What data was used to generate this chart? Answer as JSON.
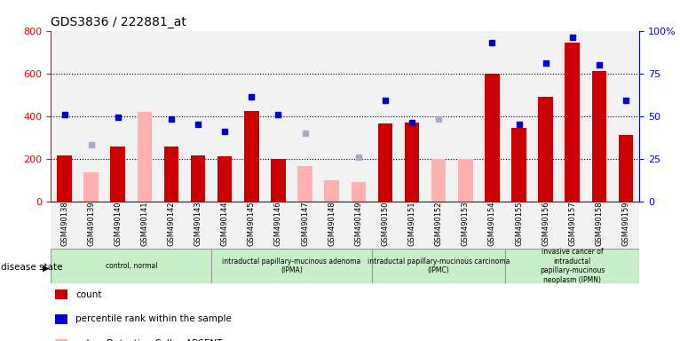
{
  "title": "GDS3836 / 222881_at",
  "samples": [
    "GSM490138",
    "GSM490139",
    "GSM490140",
    "GSM490141",
    "GSM490142",
    "GSM490143",
    "GSM490144",
    "GSM490145",
    "GSM490146",
    "GSM490147",
    "GSM490148",
    "GSM490149",
    "GSM490150",
    "GSM490151",
    "GSM490152",
    "GSM490153",
    "GSM490154",
    "GSM490155",
    "GSM490156",
    "GSM490157",
    "GSM490158",
    "GSM490159"
  ],
  "count": [
    215,
    null,
    258,
    null,
    256,
    215,
    210,
    425,
    200,
    null,
    null,
    null,
    365,
    370,
    null,
    null,
    600,
    345,
    490,
    745,
    610,
    310
  ],
  "count_absent": [
    null,
    135,
    null,
    420,
    null,
    null,
    null,
    null,
    null,
    165,
    100,
    90,
    null,
    null,
    200,
    200,
    null,
    null,
    null,
    null,
    null,
    null
  ],
  "percentile": [
    51,
    null,
    49,
    null,
    48,
    45,
    41,
    61,
    51,
    null,
    null,
    null,
    59,
    46,
    null,
    null,
    93,
    45,
    81,
    96,
    80,
    59
  ],
  "rank_absent": [
    null,
    33,
    null,
    null,
    null,
    null,
    null,
    null,
    null,
    40,
    null,
    26,
    null,
    null,
    48,
    null,
    null,
    null,
    null,
    null,
    null,
    null
  ],
  "disease_groups": [
    {
      "label": "control, normal",
      "start": 0,
      "end": 6,
      "color": "#c8f0c8"
    },
    {
      "label": "intraductal papillary-mucinous adenoma\n(IPMA)",
      "start": 6,
      "end": 12,
      "color": "#c8f0c8"
    },
    {
      "label": "intraductal papillary-mucinous carcinoma\n(IPMC)",
      "start": 12,
      "end": 17,
      "color": "#c8f0c8"
    },
    {
      "label": "invasive cancer of\nintraductal\npapillary-mucinous\nneoplasm (IPMN)",
      "start": 17,
      "end": 22,
      "color": "#c8f0c8"
    }
  ],
  "ylim_left": [
    0,
    800
  ],
  "ylim_right": [
    0,
    100
  ],
  "yticks_left": [
    0,
    200,
    400,
    600,
    800
  ],
  "yticks_right": [
    0,
    25,
    50,
    75,
    100
  ],
  "bar_color": "#cc0000",
  "bar_absent_color": "#ffb0b0",
  "dot_color": "#0000cc",
  "rank_absent_color": "#aaaacc"
}
